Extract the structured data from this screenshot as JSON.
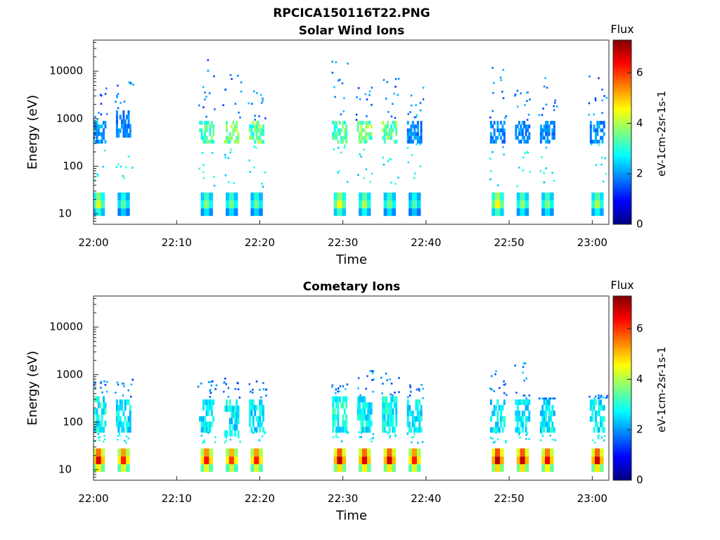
{
  "figure_title": "RPCICA150116T22.PNG",
  "colorbar_colors": [
    "#00007f",
    "#0000ff",
    "#007fff",
    "#00ffff",
    "#7fff7f",
    "#ffff00",
    "#ff7f00",
    "#ff0000",
    "#7f0000"
  ],
  "chart_data": [
    {
      "type": "heatmap",
      "title": "Solar Wind Ions",
      "xlabel": "Time",
      "ylabel": "Energy (eV)",
      "x_ticks": [
        "22:00",
        "22:10",
        "22:20",
        "22:30",
        "22:40",
        "22:50",
        "23:00"
      ],
      "x_range": [
        "22:00",
        "23:02"
      ],
      "y_scale": "log",
      "y_ticks": [
        "10",
        "100",
        "1000",
        "10000"
      ],
      "y_range": [
        6,
        45000
      ],
      "colorbar": {
        "title": "Flux",
        "label": "eV-1cm-2sr-1s-1",
        "ticks": [
          "0",
          "2",
          "4",
          "6"
        ],
        "range": [
          0,
          7.3
        ]
      },
      "bursts": [
        {
          "t": "22:00",
          "low_flux": 4.3,
          "mid_energy": [
            300,
            900
          ],
          "mid_flux": 2.0,
          "high_max": 4500
        },
        {
          "t": "22:03",
          "low_flux": 3.4,
          "mid_energy": [
            400,
            1500
          ],
          "mid_flux": 1.8,
          "high_max": 5500
        },
        {
          "t": "22:13",
          "low_flux": 3.7,
          "mid_energy": [
            300,
            900
          ],
          "mid_flux": 3.3,
          "high_max": 17000
        },
        {
          "t": "22:16",
          "low_flux": 3.6,
          "mid_energy": [
            300,
            900
          ],
          "mid_flux": 3.6,
          "high_max": 8000
        },
        {
          "t": "22:19",
          "low_flux": 3.5,
          "mid_energy": [
            300,
            900
          ],
          "mid_flux": 3.4,
          "high_max": 5500
        },
        {
          "t": "22:29",
          "low_flux": 4.5,
          "mid_energy": [
            300,
            900
          ],
          "mid_flux": 3.2,
          "high_max": 19000
        },
        {
          "t": "22:32",
          "low_flux": 4.0,
          "mid_energy": [
            300,
            900
          ],
          "mid_flux": 3.6,
          "high_max": 7500
        },
        {
          "t": "22:35",
          "low_flux": 3.6,
          "mid_energy": [
            300,
            900
          ],
          "mid_flux": 3.4,
          "high_max": 7000
        },
        {
          "t": "22:38",
          "low_flux": 3.3,
          "mid_energy": [
            300,
            900
          ],
          "mid_flux": 1.9,
          "high_max": 4500
        },
        {
          "t": "22:48",
          "low_flux": 4.6,
          "mid_energy": [
            300,
            900
          ],
          "mid_flux": 1.9,
          "high_max": 13000
        },
        {
          "t": "22:51",
          "low_flux": 3.8,
          "mid_energy": [
            300,
            900
          ],
          "mid_flux": 1.9,
          "high_max": 4000
        },
        {
          "t": "22:54",
          "low_flux": 3.7,
          "mid_energy": [
            300,
            900
          ],
          "mid_flux": 1.9,
          "high_max": 7500
        },
        {
          "t": "23:00",
          "low_flux": 4.0,
          "mid_energy": [
            300,
            900
          ],
          "mid_flux": 1.9,
          "high_max": 10000
        }
      ]
    },
    {
      "type": "heatmap",
      "title": "Cometary Ions",
      "xlabel": "Time",
      "ylabel": "Energy (eV)",
      "x_ticks": [
        "22:00",
        "22:10",
        "22:20",
        "22:30",
        "22:40",
        "22:50",
        "23:00"
      ],
      "x_range": [
        "22:00",
        "23:02"
      ],
      "y_scale": "log",
      "y_ticks": [
        "10",
        "100",
        "1000",
        "10000"
      ],
      "y_range": [
        6,
        45000
      ],
      "colorbar": {
        "title": "Flux",
        "label": "eV-1cm-2sr-1s-1",
        "ticks": [
          "0",
          "2",
          "4",
          "6"
        ],
        "range": [
          0,
          7.3
        ]
      },
      "bursts": [
        {
          "t": "22:00",
          "low_flux": 6.6,
          "mid_energy": [
            60,
            350
          ],
          "mid_flux": 2.8,
          "high_max": 700
        },
        {
          "t": "22:03",
          "low_flux": 6.2,
          "mid_energy": [
            60,
            300
          ],
          "mid_flux": 2.6,
          "high_max": 900
        },
        {
          "t": "22:13",
          "low_flux": 6.3,
          "mid_energy": [
            60,
            300
          ],
          "mid_flux": 2.7,
          "high_max": 700
        },
        {
          "t": "22:16",
          "low_flux": 6.0,
          "mid_energy": [
            50,
            300
          ],
          "mid_flux": 2.6,
          "high_max": 800
        },
        {
          "t": "22:19",
          "low_flux": 6.2,
          "mid_energy": [
            60,
            300
          ],
          "mid_flux": 2.6,
          "high_max": 700
        },
        {
          "t": "22:29",
          "low_flux": 6.8,
          "mid_energy": [
            60,
            350
          ],
          "mid_flux": 2.8,
          "high_max": 600
        },
        {
          "t": "22:32",
          "low_flux": 6.6,
          "mid_energy": [
            60,
            350
          ],
          "mid_flux": 2.7,
          "high_max": 1200
        },
        {
          "t": "22:35",
          "low_flux": 6.7,
          "mid_energy": [
            60,
            350
          ],
          "mid_flux": 2.8,
          "high_max": 1500
        },
        {
          "t": "22:38",
          "low_flux": 6.2,
          "mid_energy": [
            60,
            300
          ],
          "mid_flux": 2.6,
          "high_max": 600
        },
        {
          "t": "22:48",
          "low_flux": 6.9,
          "mid_energy": [
            60,
            300
          ],
          "mid_flux": 2.6,
          "high_max": 1200
        },
        {
          "t": "22:51",
          "low_flux": 6.8,
          "mid_energy": [
            60,
            300
          ],
          "mid_flux": 2.6,
          "high_max": 1900
        },
        {
          "t": "22:54",
          "low_flux": 6.5,
          "mid_energy": [
            60,
            300
          ],
          "mid_flux": 2.6,
          "high_max": 300
        },
        {
          "t": "23:00",
          "low_flux": 6.7,
          "mid_energy": [
            60,
            300
          ],
          "mid_flux": 2.7,
          "high_max": 350
        }
      ]
    }
  ]
}
